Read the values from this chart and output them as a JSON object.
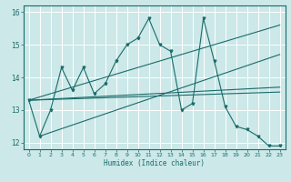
{
  "title": "",
  "xlabel": "Humidex (Indice chaleur)",
  "ylabel": "",
  "bg_color": "#cce8e8",
  "grid_color": "#b0d8d8",
  "line_color": "#1a6b6b",
  "xlim": [
    -0.5,
    23.5
  ],
  "ylim": [
    11.8,
    16.2
  ],
  "yticks": [
    12,
    13,
    14,
    15,
    16
  ],
  "xticks": [
    0,
    1,
    2,
    3,
    4,
    5,
    6,
    7,
    8,
    9,
    10,
    11,
    12,
    13,
    14,
    15,
    16,
    17,
    18,
    19,
    20,
    21,
    22,
    23
  ],
  "main_line": [
    13.3,
    12.2,
    13.0,
    14.3,
    13.6,
    14.3,
    13.5,
    13.8,
    14.5,
    15.0,
    15.2,
    15.8,
    15.0,
    14.8,
    13.0,
    13.2,
    15.8,
    14.5,
    13.1,
    12.5,
    12.4,
    12.2,
    11.9,
    11.9
  ],
  "upper_line_x": [
    0,
    23
  ],
  "upper_line_y": [
    13.3,
    15.6
  ],
  "lower_line_x": [
    0,
    23
  ],
  "lower_line_y": [
    13.3,
    13.7
  ],
  "mid_line_x": [
    0,
    23
  ],
  "mid_line_y": [
    13.3,
    13.55
  ],
  "upper2_line_x": [
    1,
    23
  ],
  "upper2_line_y": [
    12.2,
    14.7
  ],
  "figwidth": 3.2,
  "figheight": 2.0,
  "dpi": 100
}
